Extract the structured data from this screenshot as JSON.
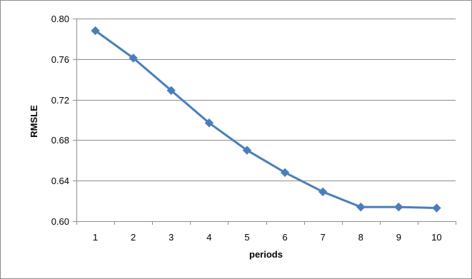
{
  "chart_data": {
    "type": "line",
    "title": "",
    "xlabel": "periods",
    "ylabel": "RMSLE",
    "x": [
      1,
      2,
      3,
      4,
      5,
      6,
      7,
      8,
      9,
      10
    ],
    "x_tick_labels": [
      "1",
      "2",
      "3",
      "4",
      "5",
      "6",
      "7",
      "8",
      "9",
      "10"
    ],
    "y_tick_labels": [
      "0.80",
      "0.76",
      "0.72",
      "0.68",
      "0.64",
      "0.60"
    ],
    "y_ticks": [
      0.8,
      0.76,
      0.72,
      0.68,
      0.64,
      0.6
    ],
    "ylim": [
      0.6,
      0.8
    ],
    "grid": true,
    "legend": "none",
    "marker": "diamond",
    "series": [
      {
        "values": [
          0.788,
          0.761,
          0.729,
          0.697,
          0.67,
          0.648,
          0.629,
          0.614,
          0.614,
          0.613
        ],
        "color": "#4A7EBB"
      }
    ]
  },
  "colors": {
    "line": "#4A7EBB",
    "gridline": "#8c8c8c",
    "axis": "#8c8c8c"
  }
}
